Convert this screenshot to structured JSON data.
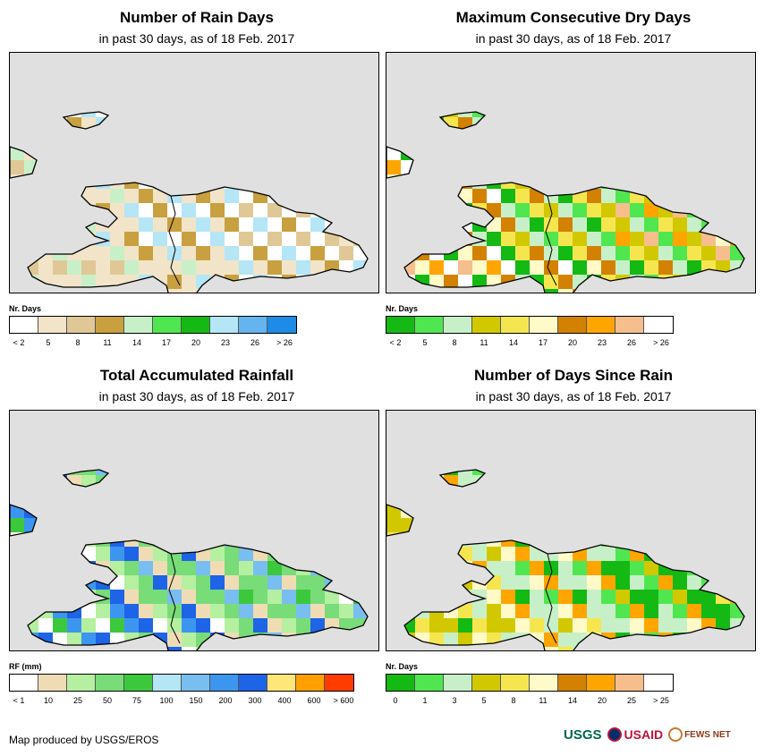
{
  "panels": [
    {
      "id": "rain_days",
      "title": "Number of Rain Days",
      "subtitle": "in past 30 days, as of 18 Feb. 2017",
      "legend_title": "Nr. Days",
      "legend_colors": [
        "#ffffff",
        "#f2e4c8",
        "#e0c896",
        "#c8a040",
        "#c8f0c8",
        "#50e650",
        "#14b914",
        "#b4e6f5",
        "#64b4f0",
        "#1e8ce6"
      ],
      "legend_labels": [
        "< 2",
        "5",
        "8",
        "11",
        "14",
        "17",
        "20",
        "23",
        "26",
        "> 26"
      ],
      "cells": [
        "#ffffff",
        "#f2e4c8",
        "#e0c896",
        "#c8a040",
        "#f2e4c8",
        "#ffffff",
        "#f2e4c8",
        "#e0c896",
        "#b4e6f5",
        "#c8f0c8"
      ]
    },
    {
      "id": "max_dry_days",
      "title": "Maximum Consecutive Dry Days",
      "subtitle": "in past 30 days, as of 18 Feb. 2017",
      "legend_title": "Nr. Days",
      "legend_colors": [
        "#14b914",
        "#50e650",
        "#c8f0c8",
        "#d2c800",
        "#f5e650",
        "#fffac8",
        "#d28200",
        "#ffa500",
        "#f5be8c",
        "#ffffff"
      ],
      "legend_labels": [
        "< 2",
        "5",
        "8",
        "11",
        "14",
        "17",
        "20",
        "23",
        "26",
        "> 26"
      ],
      "cells": [
        "#d2c800",
        "#d28200",
        "#ffa500",
        "#f5e650",
        "#fffac8",
        "#50e650",
        "#14b914",
        "#f5be8c",
        "#c8f0c8",
        "#ffffff"
      ]
    },
    {
      "id": "total_rainfall",
      "title": "Total Accumulated Rainfall",
      "subtitle": "in past 30 days, as of 18 Feb. 2017",
      "legend_title": "RF (mm)",
      "legend_colors": [
        "#ffffff",
        "#f0dcb4",
        "#b4f0a0",
        "#78dc78",
        "#3cc83c",
        "#b4e6f5",
        "#78bef0",
        "#3c96f0",
        "#1e64e6",
        "#ffe678",
        "#ffa000",
        "#ff3c00"
      ],
      "legend_labels": [
        "< 1",
        "10",
        "25",
        "50",
        "75",
        "100",
        "150",
        "200",
        "300",
        "400",
        "600",
        "> 600"
      ],
      "cells": [
        "#78dc78",
        "#b4f0a0",
        "#3cc83c",
        "#f0dcb4",
        "#ffffff",
        "#78bef0",
        "#1e64e6",
        "#b4f0a0",
        "#78dc78",
        "#3c96f0"
      ]
    },
    {
      "id": "days_since_rain",
      "title": "Number of Days Since Rain",
      "subtitle": "in past 30 days, as of 18 Feb. 2017",
      "legend_title": "Nr. Days",
      "legend_colors": [
        "#14b914",
        "#50e650",
        "#c8f0c8",
        "#d2c800",
        "#f5e650",
        "#fffac8",
        "#d28200",
        "#ffa500",
        "#f5be8c",
        "#ffffff"
      ],
      "legend_labels": [
        "0",
        "1",
        "3",
        "5",
        "8",
        "11",
        "14",
        "20",
        "25",
        "> 25"
      ],
      "cells": [
        "#14b914",
        "#c8f0c8",
        "#d2c800",
        "#ffa500",
        "#f5e650",
        "#50e650",
        "#fffac8",
        "#14b914",
        "#c8f0c8",
        "#d2c800"
      ]
    }
  ],
  "credit": "Map produced by USGS/EROS",
  "logos": {
    "usgs": "USGS",
    "usaid": "USAID",
    "fews": "FEWS NET"
  }
}
